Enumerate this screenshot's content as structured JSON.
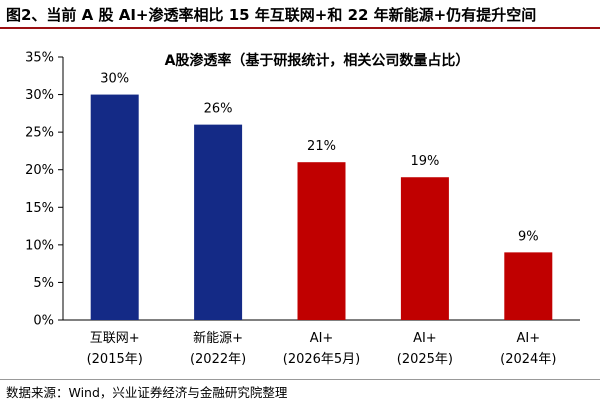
{
  "figure": {
    "title": "图2、当前 A 股 AI+渗透率相比 15 年互联网+和 22 年新能源+仍有提升空间",
    "source": "数据来源：Wind，兴业证券经济与金融研究院整理"
  },
  "chart_data": {
    "type": "bar",
    "title": "A股渗透率（基于研报统计，相关公司数量占比）",
    "categories": [
      [
        "互联网+",
        "(2015年)"
      ],
      [
        "新能源+",
        "(2022年)"
      ],
      [
        "AI+",
        "(2026年5月)"
      ],
      [
        "AI+",
        "(2025年)"
      ],
      [
        "AI+",
        "(2024年)"
      ]
    ],
    "values": [
      30,
      26,
      21,
      19,
      9
    ],
    "data_labels": [
      "30%",
      "26%",
      "21%",
      "19%",
      "9%"
    ],
    "colors": [
      "#142a86",
      "#142a86",
      "#c00000",
      "#c00000",
      "#c00000"
    ],
    "ylim": [
      0,
      35
    ],
    "yticks": [
      0,
      5,
      10,
      15,
      20,
      25,
      30,
      35
    ],
    "ytick_labels": [
      "0%",
      "5%",
      "10%",
      "15%",
      "20%",
      "25%",
      "30%",
      "35%"
    ],
    "xlabel": "",
    "ylabel": "",
    "grid": false,
    "legend": "none"
  }
}
